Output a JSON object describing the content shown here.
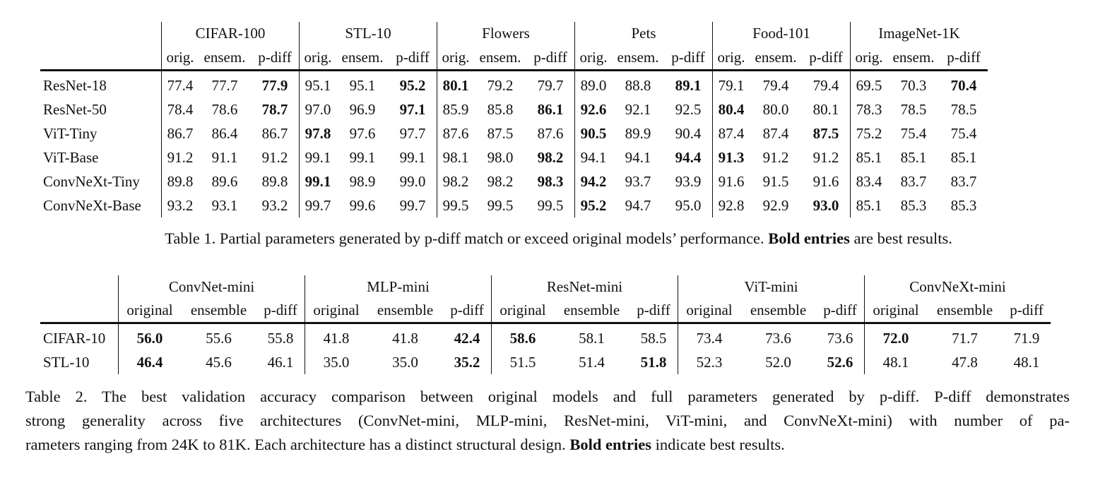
{
  "table1": {
    "groups": [
      "CIFAR-100",
      "STL-10",
      "Flowers",
      "Pets",
      "Food-101",
      "ImageNet-1K"
    ],
    "subheaders": [
      "orig.",
      "ensem.",
      "p-diff"
    ],
    "rows": [
      {
        "label": "ResNet-18",
        "values": [
          "77.4",
          "77.7",
          "77.9",
          "95.1",
          "95.1",
          "95.2",
          "80.1",
          "79.2",
          "79.7",
          "89.0",
          "88.8",
          "89.1",
          "79.1",
          "79.4",
          "79.4",
          "69.5",
          "70.3",
          "70.4"
        ],
        "bold": [
          2,
          5,
          6,
          11,
          17
        ]
      },
      {
        "label": "ResNet-50",
        "values": [
          "78.4",
          "78.6",
          "78.7",
          "97.0",
          "96.9",
          "97.1",
          "85.9",
          "85.8",
          "86.1",
          "92.6",
          "92.1",
          "92.5",
          "80.4",
          "80.0",
          "80.1",
          "78.3",
          "78.5",
          "78.5"
        ],
        "bold": [
          2,
          5,
          8,
          9,
          12
        ]
      },
      {
        "label": "ViT-Tiny",
        "values": [
          "86.7",
          "86.4",
          "86.7",
          "97.8",
          "97.6",
          "97.7",
          "87.6",
          "87.5",
          "87.6",
          "90.5",
          "89.9",
          "90.4",
          "87.4",
          "87.4",
          "87.5",
          "75.2",
          "75.4",
          "75.4"
        ],
        "bold": [
          3,
          9,
          14
        ]
      },
      {
        "label": "ViT-Base",
        "values": [
          "91.2",
          "91.1",
          "91.2",
          "99.1",
          "99.1",
          "99.1",
          "98.1",
          "98.0",
          "98.2",
          "94.1",
          "94.1",
          "94.4",
          "91.3",
          "91.2",
          "91.2",
          "85.1",
          "85.1",
          "85.1"
        ],
        "bold": [
          8,
          11,
          12
        ]
      },
      {
        "label": "ConvNeXt-Tiny",
        "values": [
          "89.8",
          "89.6",
          "89.8",
          "99.1",
          "98.9",
          "99.0",
          "98.2",
          "98.2",
          "98.3",
          "94.2",
          "93.7",
          "93.9",
          "91.6",
          "91.5",
          "91.6",
          "83.4",
          "83.7",
          "83.7"
        ],
        "bold": [
          3,
          8,
          9
        ]
      },
      {
        "label": "ConvNeXt-Base",
        "values": [
          "93.2",
          "93.1",
          "93.2",
          "99.7",
          "99.6",
          "99.7",
          "99.5",
          "99.5",
          "99.5",
          "95.2",
          "94.7",
          "95.0",
          "92.8",
          "92.9",
          "93.0",
          "85.1",
          "85.3",
          "85.3"
        ],
        "bold": [
          9,
          14
        ]
      }
    ],
    "caption_prefix": "Table 1. Partial parameters generated by p-diff match or exceed original models’ performance. ",
    "caption_bold": "Bold entries",
    "caption_suffix": " are best results."
  },
  "table2": {
    "groups": [
      "ConvNet-mini",
      "MLP-mini",
      "ResNet-mini",
      "ViT-mini",
      "ConvNeXt-mini"
    ],
    "subheaders": [
      "original",
      "ensemble",
      "p-diff"
    ],
    "rows": [
      {
        "label": "CIFAR-10",
        "values": [
          "56.0",
          "55.6",
          "55.8",
          "41.8",
          "41.8",
          "42.4",
          "58.6",
          "58.1",
          "58.5",
          "73.4",
          "73.6",
          "73.6",
          "72.0",
          "71.7",
          "71.9"
        ],
        "bold": [
          0,
          5,
          6,
          12
        ]
      },
      {
        "label": "STL-10",
        "values": [
          "46.4",
          "45.6",
          "46.1",
          "35.0",
          "35.0",
          "35.2",
          "51.5",
          "51.4",
          "51.8",
          "52.3",
          "52.0",
          "52.6",
          "48.1",
          "47.8",
          "48.1"
        ],
        "bold": [
          0,
          5,
          8,
          11
        ]
      }
    ],
    "caption_line1": "Table 2.  The best validation accuracy comparison between original models and full parameters generated by p-diff.  P-diff demonstrates",
    "caption_line2": "strong generality across five architectures (ConvNet-mini, MLP-mini, ResNet-mini, ViT-mini, and ConvNeXt-mini) with number of pa-",
    "caption_line3_prefix": "rameters ranging from 24K to 81K. Each architecture has a distinct structural design. ",
    "caption_line3_bold": "Bold entries",
    "caption_line3_suffix": " indicate best results."
  }
}
